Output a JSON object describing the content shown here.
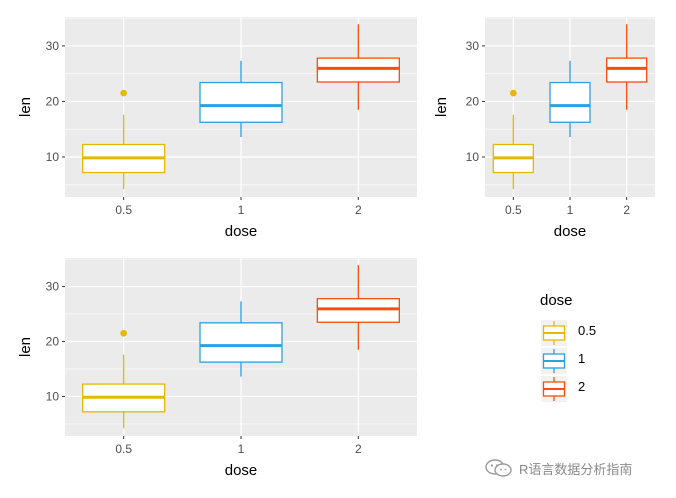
{
  "colors": {
    "0.5": "#E7B800",
    "1": "#2E9FDF",
    "2": "#FC4E07",
    "panel_bg": "#EBEBEB",
    "grid": "#FFFFFF"
  },
  "chart_data": [
    {
      "type": "boxplot",
      "title": "",
      "xlabel": "dose",
      "ylabel": "len",
      "categories": [
        "0.5",
        "1",
        "2"
      ],
      "yticks": [
        10,
        20,
        30
      ],
      "ylim": [
        2.8,
        35.2
      ],
      "boxes": [
        {
          "category": "0.5",
          "min": 4.2,
          "q1": 7.2,
          "median": 9.85,
          "q3": 12.25,
          "max": 17.6,
          "outliers": [
            21.5
          ]
        },
        {
          "category": "1",
          "min": 13.6,
          "q1": 16.25,
          "median": 19.25,
          "q3": 23.4,
          "max": 27.3,
          "outliers": []
        },
        {
          "category": "2",
          "min": 18.5,
          "q1": 23.5,
          "median": 25.95,
          "q3": 27.8,
          "max": 33.9,
          "outliers": []
        }
      ]
    },
    {
      "type": "boxplot",
      "title": "",
      "xlabel": "dose",
      "ylabel": "len",
      "categories": [
        "0.5",
        "1",
        "2"
      ],
      "yticks": [
        10,
        20,
        30
      ],
      "ylim": [
        2.8,
        35.2
      ],
      "boxes": [
        {
          "category": "0.5",
          "min": 4.2,
          "q1": 7.2,
          "median": 9.85,
          "q3": 12.25,
          "max": 17.6,
          "outliers": [
            21.5
          ]
        },
        {
          "category": "1",
          "min": 13.6,
          "q1": 16.25,
          "median": 19.25,
          "q3": 23.4,
          "max": 27.3,
          "outliers": []
        },
        {
          "category": "2",
          "min": 18.5,
          "q1": 23.5,
          "median": 25.95,
          "q3": 27.8,
          "max": 33.9,
          "outliers": []
        }
      ]
    },
    {
      "type": "boxplot",
      "title": "",
      "xlabel": "dose",
      "ylabel": "len",
      "categories": [
        "0.5",
        "1",
        "2"
      ],
      "yticks": [
        10,
        20,
        30
      ],
      "ylim": [
        2.8,
        35.2
      ],
      "boxes": [
        {
          "category": "0.5",
          "min": 4.2,
          "q1": 7.2,
          "median": 9.85,
          "q3": 12.25,
          "max": 17.6,
          "outliers": [
            21.5
          ]
        },
        {
          "category": "1",
          "min": 13.6,
          "q1": 16.25,
          "median": 19.25,
          "q3": 23.4,
          "max": 27.3,
          "outliers": []
        },
        {
          "category": "2",
          "min": 18.5,
          "q1": 23.5,
          "median": 25.95,
          "q3": 27.8,
          "max": 33.9,
          "outliers": []
        }
      ]
    }
  ],
  "legend": {
    "title": "dose",
    "items": [
      "0.5",
      "1",
      "2"
    ]
  },
  "watermark": {
    "icon": "wechat-icon",
    "text": "R语言数据分析指南"
  }
}
